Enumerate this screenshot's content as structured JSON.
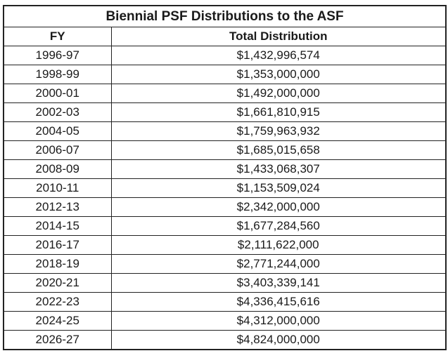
{
  "table": {
    "title": "Biennial PSF Distributions to the ASF",
    "columns": [
      "FY",
      "Total Distribution"
    ],
    "rows": [
      {
        "fy": "1996-97",
        "total": "$1,432,996,574"
      },
      {
        "fy": "1998-99",
        "total": "$1,353,000,000"
      },
      {
        "fy": "2000-01",
        "total": "$1,492,000,000"
      },
      {
        "fy": "2002-03",
        "total": "$1,661,810,915"
      },
      {
        "fy": "2004-05",
        "total": "$1,759,963,932"
      },
      {
        "fy": "2006-07",
        "total": "$1,685,015,658"
      },
      {
        "fy": "2008-09",
        "total": "$1,433,068,307"
      },
      {
        "fy": "2010-11",
        "total": "$1,153,509,024"
      },
      {
        "fy": "2012-13",
        "total": "$2,342,000,000"
      },
      {
        "fy": "2014-15",
        "total": "$1,677,284,560"
      },
      {
        "fy": "2016-17",
        "total": "$2,111,622,000"
      },
      {
        "fy": "2018-19",
        "total": "$2,771,244,000"
      },
      {
        "fy": "2020-21",
        "total": "$3,403,339,141"
      },
      {
        "fy": "2022-23",
        "total": "$4,336,415,616"
      },
      {
        "fy": "2024-25",
        "total": "$4,312,000,000"
      },
      {
        "fy": "2026-27",
        "total": "$4,824,000,000"
      }
    ]
  }
}
